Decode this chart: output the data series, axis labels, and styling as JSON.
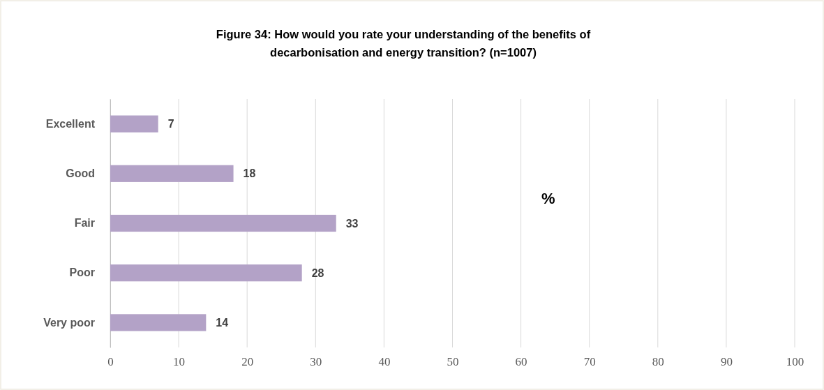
{
  "chart_data": {
    "type": "bar",
    "orientation": "horizontal",
    "title": "Figure 34: How would you rate your understanding of the benefits of decarbonisation and energy transition? (n=1007)",
    "xlabel": "%",
    "categories": [
      "Excellent",
      "Good",
      "Fair",
      "Poor",
      "Very poor"
    ],
    "values": [
      7,
      18,
      33,
      28,
      14
    ],
    "color": "#b3a2c7",
    "data_labels": true,
    "grid": "x",
    "xlim": [
      0,
      100
    ],
    "xticks": [
      0,
      10,
      20,
      30,
      40,
      50,
      60,
      70,
      80,
      90,
      100
    ]
  }
}
